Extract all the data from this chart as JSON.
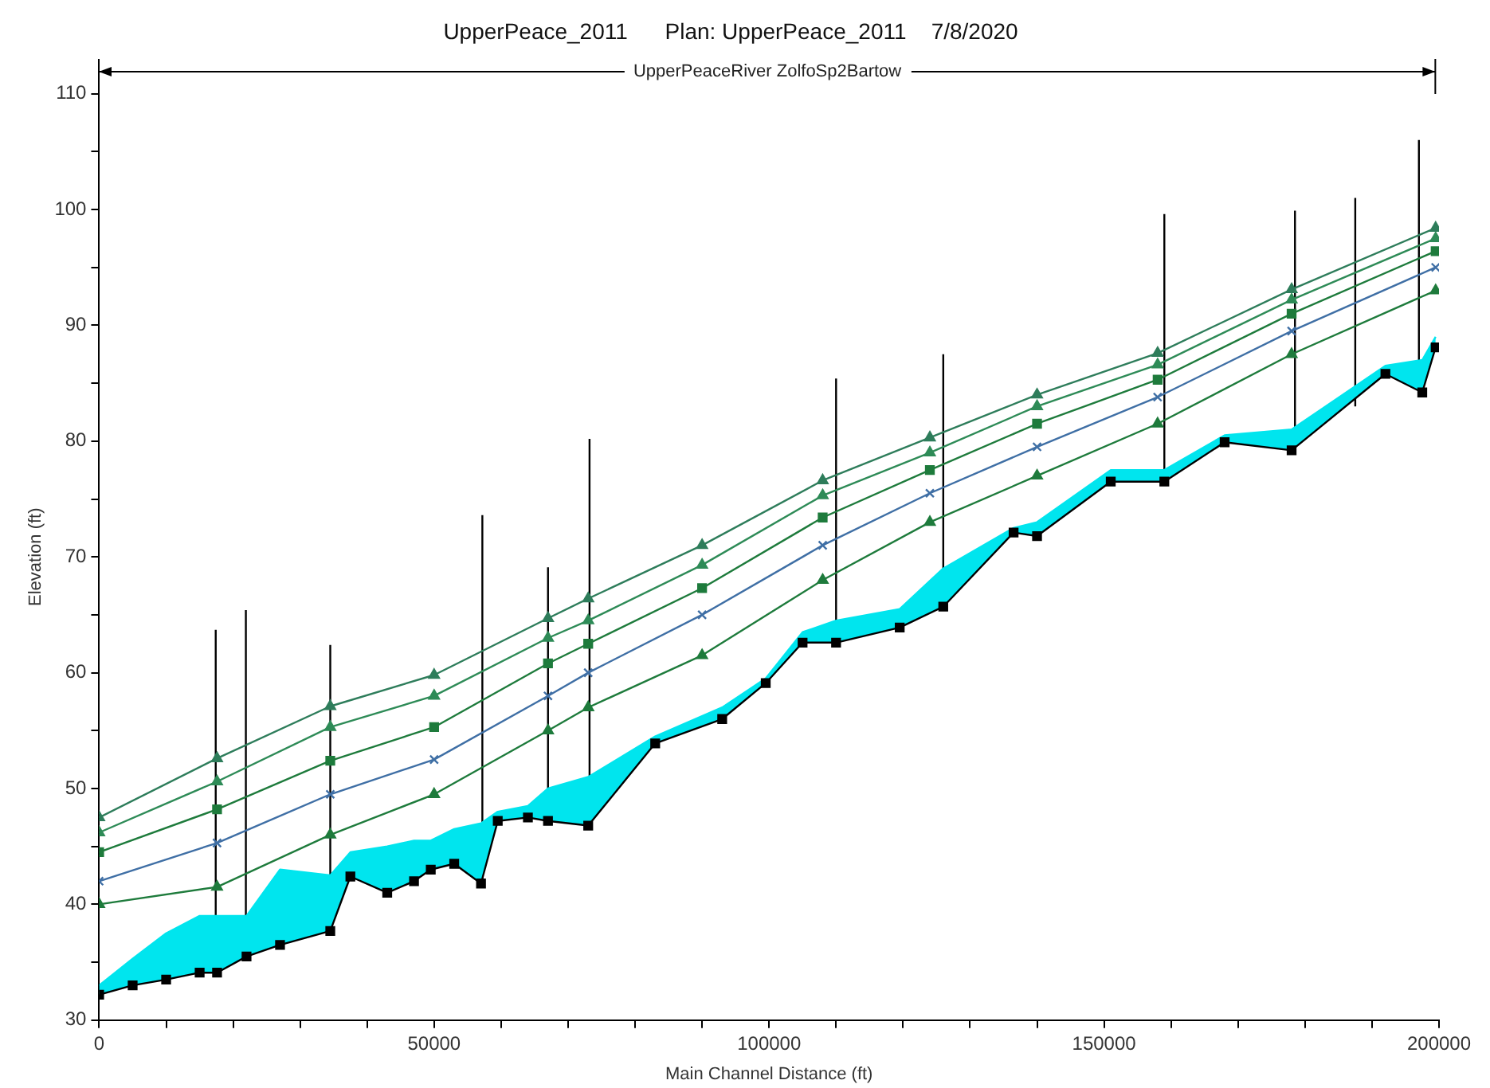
{
  "chart_data": {
    "type": "line",
    "title": "UpperPeace_2011      Plan: UpperPeace_2011    7/8/2020",
    "xlabel": "Main Channel Distance (ft)",
    "ylabel": "Elevation (ft)",
    "annotations": [
      "UpperPeaceRiver ZolfoSp2Bartow"
    ],
    "xlim": [
      0,
      200000
    ],
    "ylim": [
      30,
      110
    ],
    "xticks": [
      0,
      {
        "value": 10000,
        "label": null
      },
      {
        "value": 20000,
        "label": null
      },
      {
        "value": 30000,
        "label": null
      },
      {
        "value": 40000,
        "label": null
      },
      50000,
      {
        "value": 60000,
        "label": null
      },
      {
        "value": 70000,
        "label": null
      },
      {
        "value": 80000,
        "label": null
      },
      {
        "value": 90000,
        "label": null
      },
      100000,
      {
        "value": 110000,
        "label": null
      },
      {
        "value": 120000,
        "label": null
      },
      {
        "value": 130000,
        "label": null
      },
      {
        "value": 140000,
        "label": null
      },
      150000,
      {
        "value": 160000,
        "label": null
      },
      {
        "value": 170000,
        "label": null
      },
      {
        "value": 180000,
        "label": null
      },
      {
        "value": 190000,
        "label": null
      },
      200000
    ],
    "yticks": [
      30,
      {
        "value": 35,
        "label": null
      },
      40,
      {
        "value": 45,
        "label": null
      },
      50,
      {
        "value": 55,
        "label": null
      },
      60,
      {
        "value": 65,
        "label": null
      },
      70,
      {
        "value": 75,
        "label": null
      },
      80,
      {
        "value": 85,
        "label": null
      },
      90,
      {
        "value": 95,
        "label": null
      },
      100,
      {
        "value": 105,
        "label": null
      },
      110
    ],
    "grid": false,
    "series": [
      {
        "color": "#000000",
        "marker": "square",
        "x": [
          0,
          5000,
          10000,
          15000,
          17600,
          22000,
          27000,
          34500,
          37500,
          43000,
          47000,
          49500,
          53000,
          57000,
          59500,
          64000,
          67000,
          73000,
          83000,
          93000,
          99500,
          105000,
          110000,
          119500,
          126000,
          136500,
          140000,
          151000,
          159000,
          168000,
          178000,
          192000,
          197500,
          199500
        ],
        "values": [
          32.2,
          33,
          33.5,
          34.1,
          34.1,
          35.5,
          36.5,
          37.7,
          42.4,
          41,
          42,
          43,
          43.5,
          41.8,
          47.2,
          47.5,
          47.2,
          46.8,
          53.9,
          56,
          59.1,
          62.6,
          62.6,
          63.9,
          65.7,
          72.1,
          71.8,
          76.5,
          76.5,
          79.9,
          79.2,
          85.8,
          84.2,
          88.1
        ]
      },
      {
        "type": "area",
        "color": "#00e5ee",
        "marker": "none",
        "x": [
          0,
          5000,
          10000,
          15000,
          17600,
          22000,
          27000,
          34500,
          37500,
          43000,
          47000,
          49500,
          53000,
          57000,
          59500,
          64000,
          67000,
          73000,
          83000,
          93000,
          99500,
          105000,
          110000,
          119500,
          126000,
          136500,
          140000,
          151000,
          159000,
          168000,
          178000,
          192000,
          197500,
          199500
        ],
        "values": [
          33,
          35.3,
          37.5,
          39,
          39,
          39,
          43,
          42.5,
          44.5,
          45,
          45.5,
          45.5,
          46.5,
          47,
          48,
          48.5,
          50,
          51,
          54.5,
          57,
          59.5,
          63.5,
          64.5,
          65.5,
          69,
          72.5,
          73,
          77.5,
          77.5,
          80.5,
          81,
          86.5,
          87,
          89
        ]
      },
      {
        "color": "#1e7b3c",
        "marker": "triangle",
        "x": [
          0,
          17600,
          34500,
          50000,
          67000,
          73000,
          90000,
          108000,
          124000,
          140000,
          158000,
          178000,
          199500
        ],
        "values": [
          40,
          41.5,
          46,
          49.5,
          55,
          57,
          61.5,
          68,
          73,
          77,
          81.5,
          87.5,
          93
        ]
      },
      {
        "color": "#3f6fa5",
        "marker": "cross",
        "x": [
          0,
          17600,
          34500,
          50000,
          67000,
          73000,
          90000,
          108000,
          124000,
          140000,
          158000,
          178000,
          199500
        ],
        "values": [
          42,
          45.3,
          49.5,
          52.5,
          58,
          60,
          65,
          71,
          75.5,
          79.5,
          83.8,
          89.5,
          95
        ]
      },
      {
        "color": "#1e7b3c",
        "marker": "square",
        "x": [
          0,
          17600,
          34500,
          50000,
          67000,
          73000,
          90000,
          108000,
          124000,
          140000,
          158000,
          178000,
          199500
        ],
        "values": [
          44.5,
          48.2,
          52.4,
          55.3,
          60.8,
          62.5,
          67.3,
          73.4,
          77.5,
          81.5,
          85.3,
          91,
          96.4
        ]
      },
      {
        "color": "#2e8b57",
        "marker": "triangle",
        "x": [
          0,
          17600,
          34500,
          50000,
          67000,
          73000,
          90000,
          108000,
          124000,
          140000,
          158000,
          178000,
          199500
        ],
        "values": [
          46.2,
          50.6,
          55.3,
          58,
          63,
          64.5,
          69.3,
          75.3,
          79,
          83,
          86.6,
          92.2,
          97.5
        ]
      },
      {
        "color": "#2e7d5b",
        "marker": "triangle",
        "x": [
          0,
          17600,
          34500,
          50000,
          67000,
          73000,
          90000,
          108000,
          124000,
          140000,
          158000,
          178000,
          199500
        ],
        "values": [
          47.5,
          52.6,
          57.1,
          59.8,
          64.7,
          66.4,
          71,
          76.6,
          80.3,
          84,
          87.6,
          93.1,
          98.4
        ]
      },
      {
        "color": "#000000",
        "marker": "none",
        "x": [
          17400,
          17400
        ],
        "values": [
          34.1,
          63.7
        ]
      },
      {
        "color": "#000000",
        "marker": "none",
        "x": [
          21900,
          21900
        ],
        "values": [
          35.5,
          65.4
        ]
      },
      {
        "color": "#000000",
        "marker": "none",
        "x": [
          34500,
          34500
        ],
        "values": [
          37.7,
          62.4
        ]
      },
      {
        "color": "#000000",
        "marker": "none",
        "x": [
          57200,
          57200
        ],
        "values": [
          41.8,
          73.6
        ]
      },
      {
        "color": "#000000",
        "marker": "none",
        "x": [
          67000,
          67000
        ],
        "values": [
          47.2,
          69.1
        ]
      },
      {
        "color": "#000000",
        "marker": "none",
        "x": [
          73200,
          73200
        ],
        "values": [
          46.8,
          80.2
        ]
      },
      {
        "color": "#000000",
        "marker": "none",
        "x": [
          110000,
          110000
        ],
        "values": [
          62.6,
          85.4
        ]
      },
      {
        "color": "#000000",
        "marker": "none",
        "x": [
          126000,
          126000
        ],
        "values": [
          65.7,
          87.5
        ]
      },
      {
        "color": "#000000",
        "marker": "none",
        "x": [
          159000,
          159000
        ],
        "values": [
          76.5,
          99.6
        ]
      },
      {
        "color": "#000000",
        "marker": "none",
        "x": [
          178500,
          178500
        ],
        "values": [
          79.2,
          99.9
        ]
      },
      {
        "color": "#000000",
        "marker": "none",
        "x": [
          187500,
          187500
        ],
        "values": [
          83,
          101
        ]
      },
      {
        "color": "#000000",
        "marker": "none",
        "x": [
          197000,
          197000
        ],
        "values": [
          84.2,
          106
        ]
      }
    ]
  }
}
